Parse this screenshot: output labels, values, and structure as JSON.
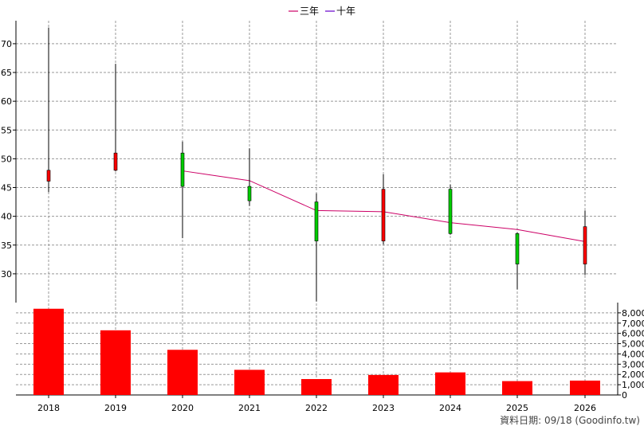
{
  "chart_data": {
    "type": "candlestick",
    "legend": [
      {
        "name": "三年",
        "color": "#cc0066"
      },
      {
        "name": "十年",
        "color": "#6600cc"
      }
    ],
    "legend_position": "top-center",
    "grid": true,
    "colors": {
      "up": "#ff0000",
      "down": "#00cc00",
      "volume": "#ff0000",
      "ma_line": "#cc0066"
    },
    "categories": [
      "2018",
      "2019",
      "2020",
      "2021",
      "2022",
      "2023",
      "2024",
      "2025",
      "2026"
    ],
    "price_axis": {
      "ylim": [
        25,
        74
      ],
      "ticks": [
        30,
        35,
        40,
        45,
        50,
        55,
        60,
        65,
        70
      ]
    },
    "candles": [
      {
        "open": 46.1,
        "high": 72.8,
        "low": 44.2,
        "close": 48.0
      },
      {
        "open": 48.0,
        "high": 66.5,
        "low": 47.8,
        "close": 51.0
      },
      {
        "open": 51.0,
        "high": 53.0,
        "low": 36.2,
        "close": 45.2
      },
      {
        "open": 45.2,
        "high": 51.8,
        "low": 41.8,
        "close": 42.7
      },
      {
        "open": 42.5,
        "high": 44.0,
        "low": 25.2,
        "close": 35.7
      },
      {
        "open": 35.7,
        "high": 47.3,
        "low": 35.1,
        "close": 44.7
      },
      {
        "open": 44.7,
        "high": 45.5,
        "low": 36.8,
        "close": 37.0
      },
      {
        "open": 37.0,
        "high": 37.2,
        "low": 27.3,
        "close": 31.7
      },
      {
        "open": 31.7,
        "high": 41.0,
        "low": 29.8,
        "close": 38.2
      }
    ],
    "ma_three_year": [
      null,
      null,
      47.9,
      46.2,
      41.0,
      40.8,
      38.9,
      37.7,
      35.6
    ],
    "volume_axis": {
      "ylim": [
        0,
        9000
      ],
      "ticks": [
        0,
        1000,
        2000,
        3000,
        4000,
        5000,
        6000,
        7000,
        8000
      ],
      "tick_labels": [
        "0",
        "1,000",
        "2,000",
        "3,000",
        "4,000",
        "5,000",
        "6,000",
        "7,000",
        "8,000"
      ]
    },
    "volume": [
      8400,
      6300,
      4400,
      2450,
      1550,
      1950,
      2200,
      1350,
      1400
    ]
  },
  "footer": {
    "text": "資料日期: 09/18  (Goodinfo.tw)"
  }
}
